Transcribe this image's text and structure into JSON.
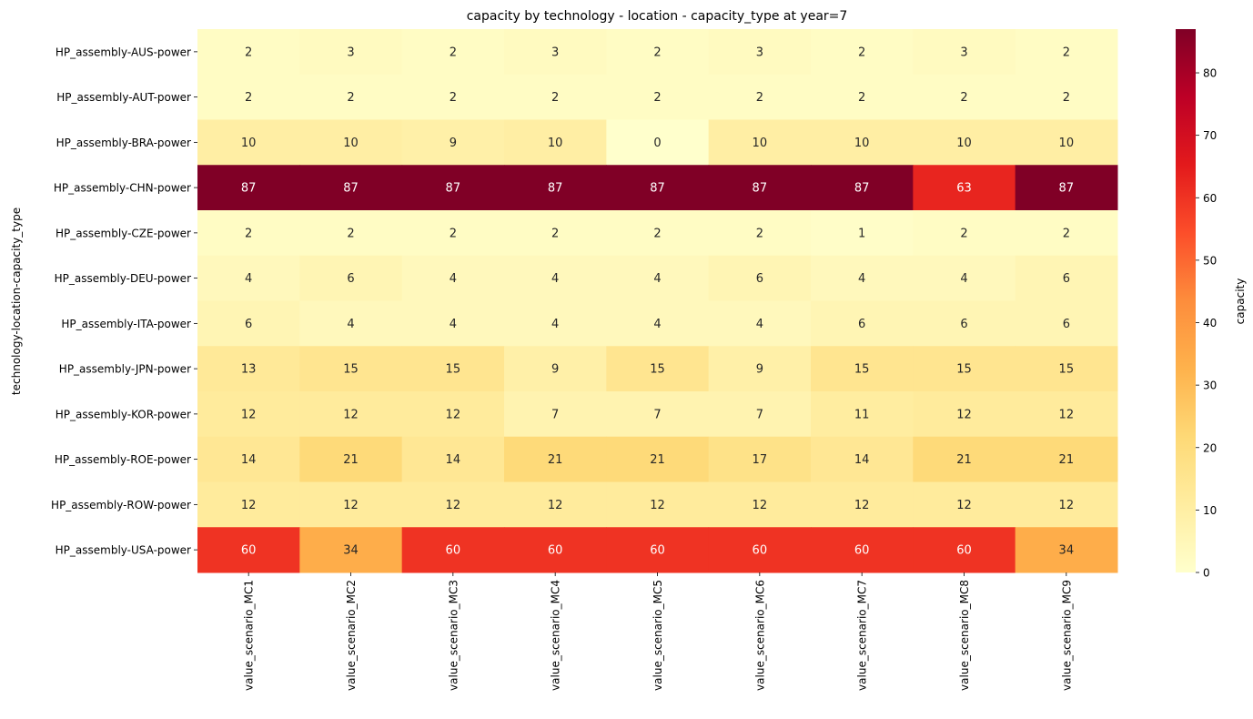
{
  "chart_data": {
    "type": "heatmap",
    "title": "capacity by technology - location - capacity_type at year=7",
    "ylabel": "technology-location-capacity_type",
    "xlabel": "",
    "colorbar_label": "capacity",
    "colormap": "YlOrRd",
    "vmin": 0,
    "vmax": 87,
    "colorbar_ticks": [
      0,
      10,
      20,
      30,
      40,
      50,
      60,
      70,
      80
    ],
    "columns": [
      "value_scenario_MC1",
      "value_scenario_MC2",
      "value_scenario_MC3",
      "value_scenario_MC4",
      "value_scenario_MC5",
      "value_scenario_MC6",
      "value_scenario_MC7",
      "value_scenario_MC8",
      "value_scenario_MC9"
    ],
    "rows": [
      "HP_assembly-AUS-power",
      "HP_assembly-AUT-power",
      "HP_assembly-BRA-power",
      "HP_assembly-CHN-power",
      "HP_assembly-CZE-power",
      "HP_assembly-DEU-power",
      "HP_assembly-ITA-power",
      "HP_assembly-JPN-power",
      "HP_assembly-KOR-power",
      "HP_assembly-ROE-power",
      "HP_assembly-ROW-power",
      "HP_assembly-USA-power"
    ],
    "values": [
      [
        2,
        3,
        2,
        3,
        2,
        3,
        2,
        3,
        2
      ],
      [
        2,
        2,
        2,
        2,
        2,
        2,
        2,
        2,
        2
      ],
      [
        10,
        10,
        9,
        10,
        0,
        10,
        10,
        10,
        10
      ],
      [
        87,
        87,
        87,
        87,
        87,
        87,
        87,
        63,
        87
      ],
      [
        2,
        2,
        2,
        2,
        2,
        2,
        1,
        2,
        2
      ],
      [
        4,
        6,
        4,
        4,
        4,
        6,
        4,
        4,
        6
      ],
      [
        6,
        4,
        4,
        4,
        4,
        4,
        6,
        6,
        6
      ],
      [
        13,
        15,
        15,
        9,
        15,
        9,
        15,
        15,
        15
      ],
      [
        12,
        12,
        12,
        7,
        7,
        7,
        11,
        12,
        12
      ],
      [
        14,
        21,
        14,
        21,
        21,
        17,
        14,
        21,
        21
      ],
      [
        12,
        12,
        12,
        12,
        12,
        12,
        12,
        12,
        12
      ],
      [
        60,
        34,
        60,
        60,
        60,
        60,
        60,
        60,
        34
      ]
    ]
  }
}
